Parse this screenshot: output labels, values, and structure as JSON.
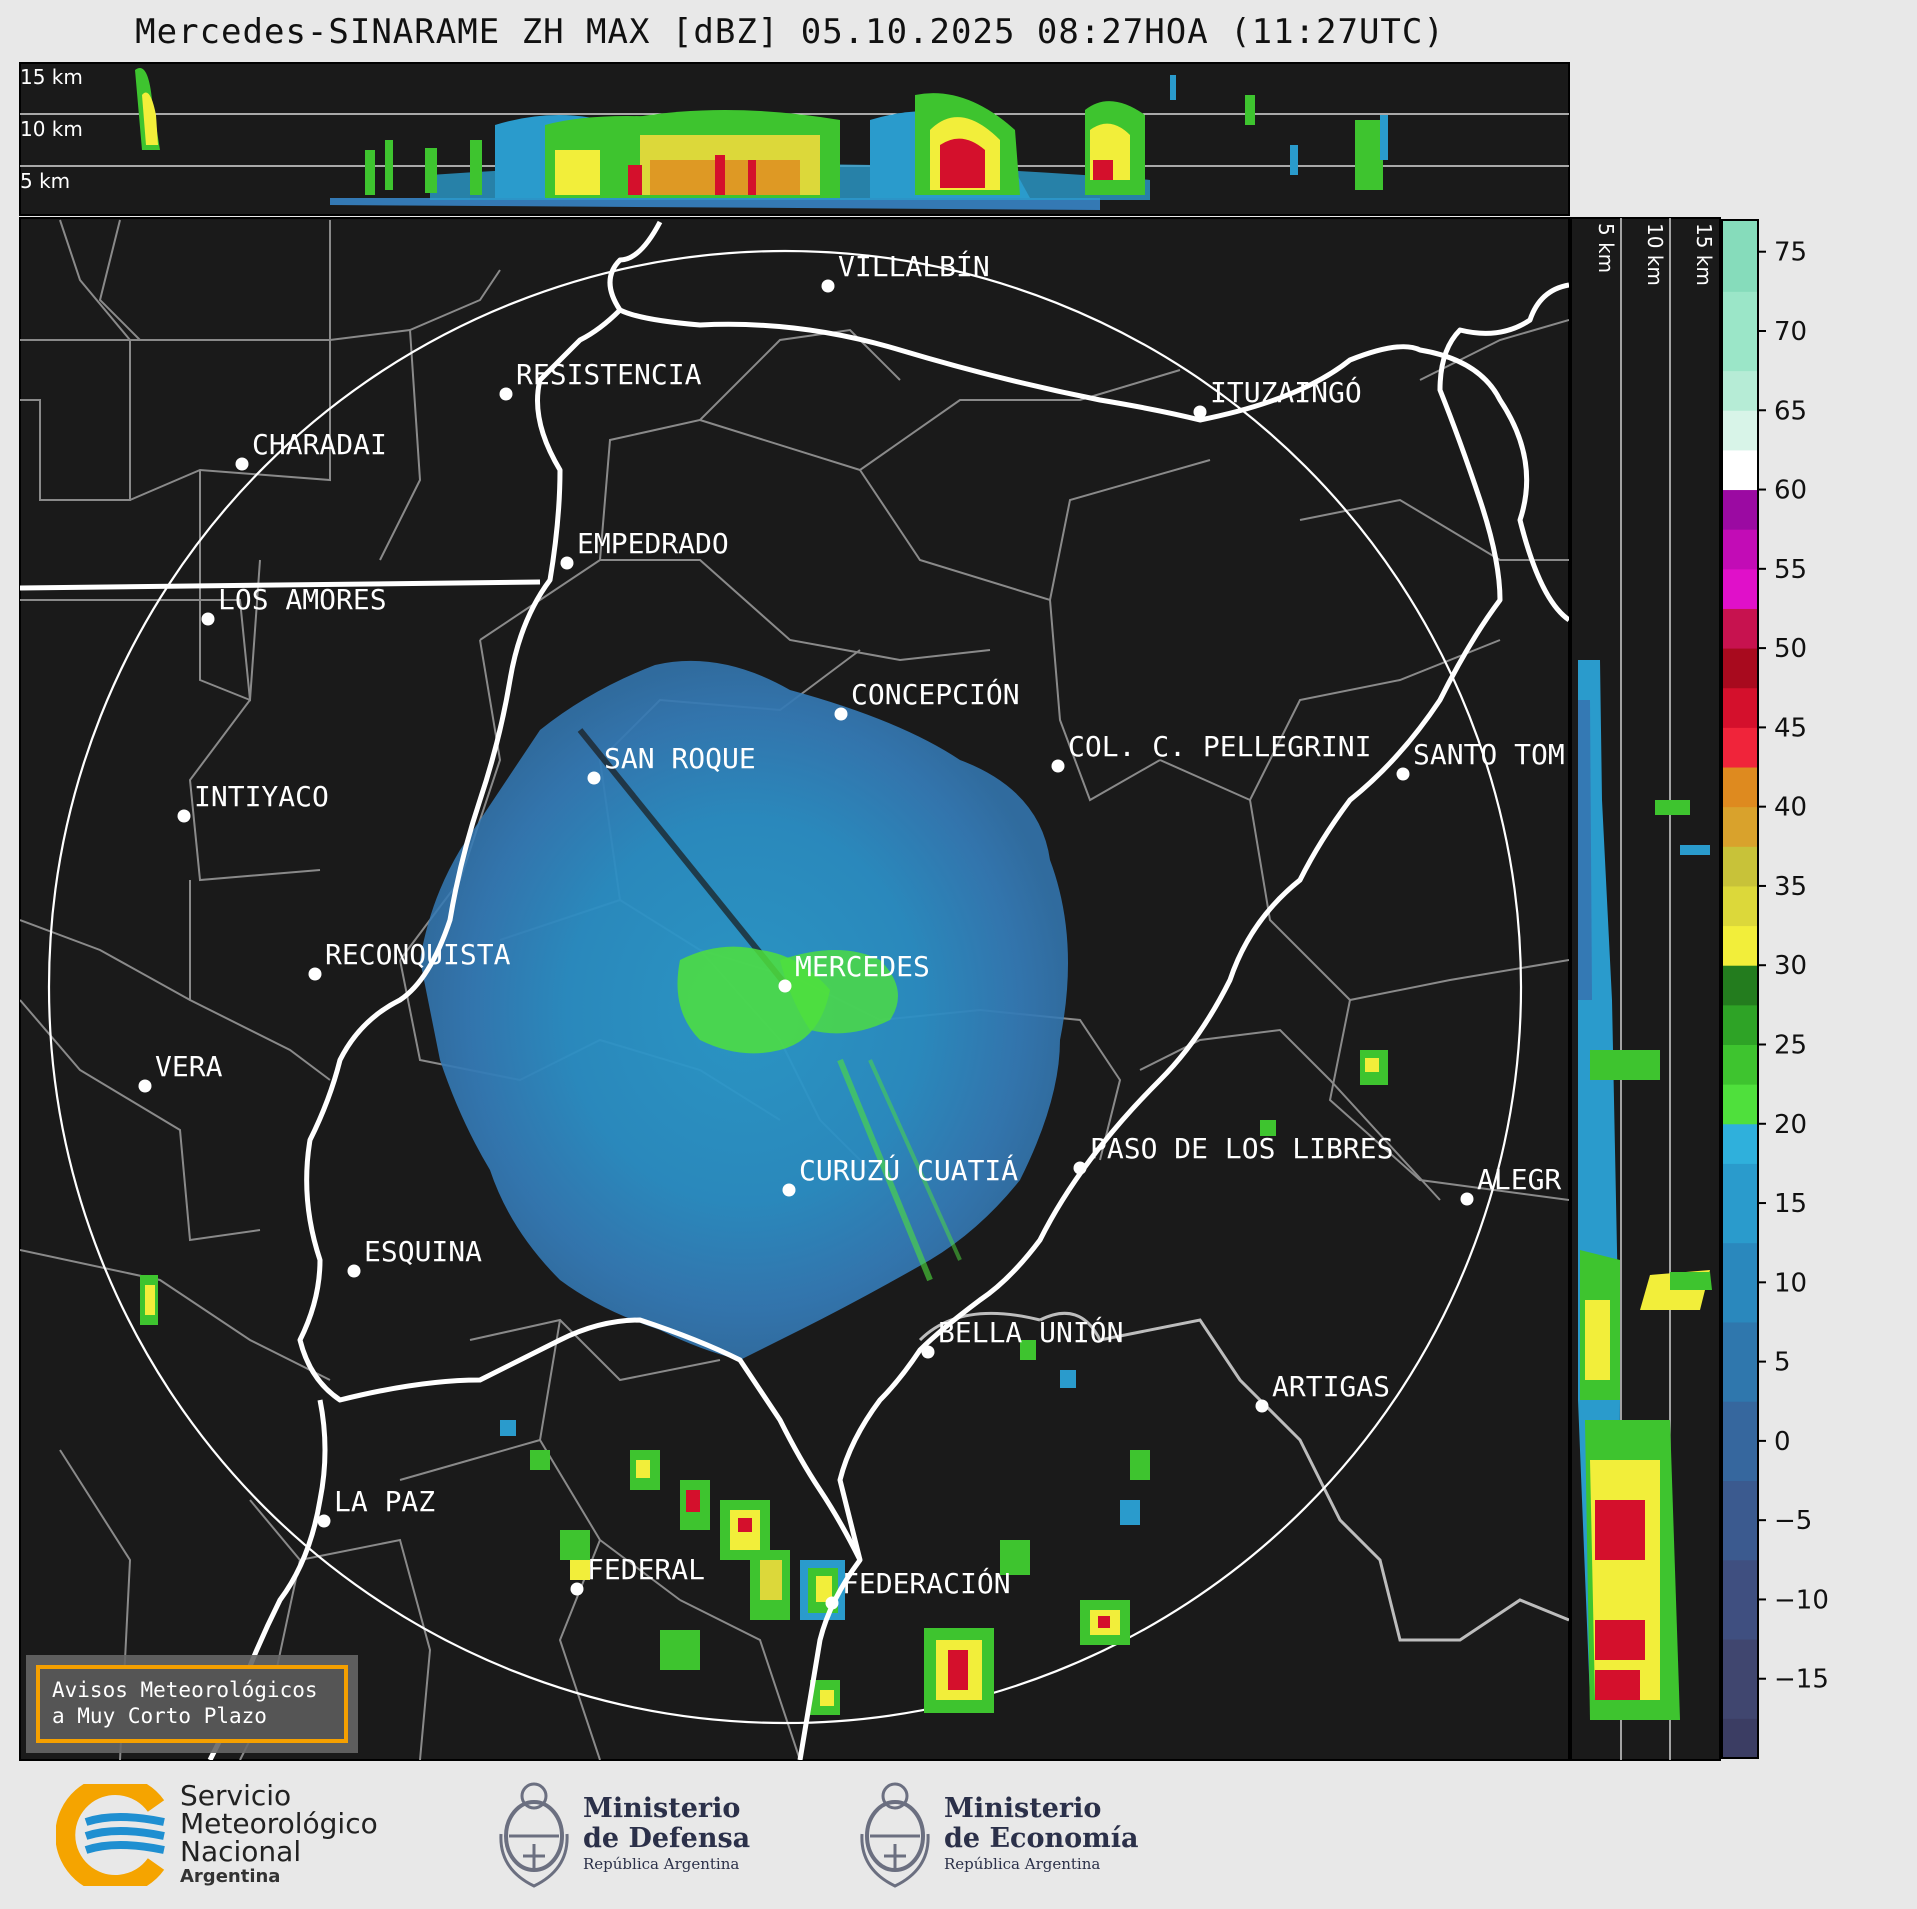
{
  "title": "Mercedes-SINARAME ZH MAX [dBZ] 05.10.2025 08:27HOA (11:27UTC)",
  "top_profile": {
    "levels": [
      "15 km",
      "10 km",
      "5 km"
    ]
  },
  "side_profile": {
    "levels": [
      "5 km",
      "10 km",
      "15 km"
    ]
  },
  "colorbar": {
    "ticks": [
      "75",
      "70",
      "65",
      "60",
      "55",
      "50",
      "45",
      "40",
      "35",
      "30",
      "25",
      "20",
      "15",
      "10",
      "5",
      "0",
      "−5",
      "−10",
      "−15"
    ],
    "tick_values": [
      75,
      70,
      65,
      60,
      55,
      50,
      45,
      40,
      35,
      30,
      25,
      20,
      15,
      10,
      5,
      0,
      -5,
      -10,
      -15
    ],
    "range": [
      -20,
      77
    ],
    "bands": [
      {
        "from": -20,
        "to": -17.5,
        "color": "#3b3d63"
      },
      {
        "from": -17.5,
        "to": -12.5,
        "color": "#40466f"
      },
      {
        "from": -12.5,
        "to": -7.5,
        "color": "#3f4f80"
      },
      {
        "from": -7.5,
        "to": -2.5,
        "color": "#3b5a8f"
      },
      {
        "from": -2.5,
        "to": 2.5,
        "color": "#36679e"
      },
      {
        "from": 2.5,
        "to": 7.5,
        "color": "#2f77ad"
      },
      {
        "from": 7.5,
        "to": 12.5,
        "color": "#2a88bd"
      },
      {
        "from": 12.5,
        "to": 17.5,
        "color": "#2a9bcc"
      },
      {
        "from": 17.5,
        "to": 20,
        "color": "#2fb0dc"
      },
      {
        "from": 20,
        "to": 22.5,
        "color": "#4fe03c"
      },
      {
        "from": 22.5,
        "to": 25,
        "color": "#3ec42f"
      },
      {
        "from": 25,
        "to": 27.5,
        "color": "#2ea326"
      },
      {
        "from": 27.5,
        "to": 30,
        "color": "#237c1e"
      },
      {
        "from": 30,
        "to": 32.5,
        "color": "#f2ee3a"
      },
      {
        "from": 32.5,
        "to": 35,
        "color": "#dcd83a"
      },
      {
        "from": 35,
        "to": 37.5,
        "color": "#c8c239"
      },
      {
        "from": 37.5,
        "to": 40,
        "color": "#d9a22c"
      },
      {
        "from": 40,
        "to": 42.5,
        "color": "#de8a1f"
      },
      {
        "from": 42.5,
        "to": 45,
        "color": "#f0243a"
      },
      {
        "from": 45,
        "to": 47.5,
        "color": "#d4102c"
      },
      {
        "from": 47.5,
        "to": 50,
        "color": "#a80a1e"
      },
      {
        "from": 50,
        "to": 52.5,
        "color": "#c7124f"
      },
      {
        "from": 52.5,
        "to": 55,
        "color": "#e010c9"
      },
      {
        "from": 55,
        "to": 57.5,
        "color": "#c20cb6"
      },
      {
        "from": 57.5,
        "to": 60,
        "color": "#9b0aa2"
      },
      {
        "from": 60,
        "to": 62.5,
        "color": "#ffffff"
      },
      {
        "from": 62.5,
        "to": 65,
        "color": "#d8f4e8"
      },
      {
        "from": 65,
        "to": 67.5,
        "color": "#b6ecd6"
      },
      {
        "from": 67.5,
        "to": 72.5,
        "color": "#9be6c8"
      },
      {
        "from": 72.5,
        "to": 77,
        "color": "#86dcbb"
      }
    ]
  },
  "cities": [
    {
      "name": "VILLALBÍN"
    },
    {
      "name": "RESISTENCIA"
    },
    {
      "name": "CHARADAI"
    },
    {
      "name": "ITUZAINGÓ"
    },
    {
      "name": "EMPEDRADO"
    },
    {
      "name": "LOS AMORES"
    },
    {
      "name": "CONCEPCIÓN"
    },
    {
      "name": "COL. C. PELLEGRINI"
    },
    {
      "name": "SANTO TOM"
    },
    {
      "name": "SAN ROQUE"
    },
    {
      "name": "INTIYACO"
    },
    {
      "name": "MERCEDES"
    },
    {
      "name": "RECONQUISTA"
    },
    {
      "name": "VERA"
    },
    {
      "name": "PASO DE LOS LIBRES"
    },
    {
      "name": "CURUZÚ CUATIÁ"
    },
    {
      "name": "ALEGR"
    },
    {
      "name": "ESQUINA"
    },
    {
      "name": "BELLA UNIÓN"
    },
    {
      "name": "ARTIGAS"
    },
    {
      "name": "LA PAZ"
    },
    {
      "name": "FEDERAL"
    },
    {
      "name": "FEDERACIÓN"
    }
  ],
  "warning_box": {
    "line1": "Avisos Meteorológicos",
    "line2": "a Muy Corto Plazo"
  },
  "footer": {
    "smn": {
      "line1": "Servicio",
      "line2": "Meteorológico",
      "line3": "Nacional",
      "line4": "Argentina"
    },
    "defensa": {
      "line1": "Ministerio",
      "line2": "de Defensa",
      "line3": "República Argentina"
    },
    "economia": {
      "line1": "Ministerio",
      "line2": "de Economía",
      "line3": "República Argentina"
    }
  },
  "colors": {
    "map_bg": "#1a1a1a",
    "page_bg": "#e8e8e8",
    "warning_border": "#f5a000",
    "smn_blue": "#1f8fd1",
    "smn_orange": "#f5a400"
  }
}
